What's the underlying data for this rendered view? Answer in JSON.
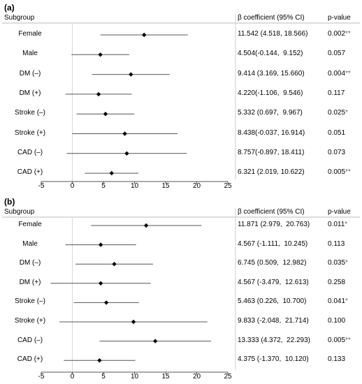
{
  "chart_data": [
    {
      "type": "forest",
      "panel_label": "(a)",
      "headers": {
        "subgroup": "Subgroup",
        "beta": "β coefficient (95% CI)",
        "pvalue": "p-value"
      },
      "x_ticks": [
        "-5",
        "0",
        "5",
        "10",
        "15",
        "20",
        "25"
      ],
      "xlim": [
        -5,
        25
      ],
      "rows": [
        {
          "label": "Female",
          "beta": 11.542,
          "lo": 4.518,
          "hi": 18.566,
          "ci_text": "11.542 (4.518, 18.566)",
          "p": "0.002",
          "sig": "**"
        },
        {
          "label": "Male",
          "beta": 4.504,
          "lo": -0.144,
          "hi": 9.152,
          "ci_text": "4.504(-0.144,  9.152)",
          "p": "0.057",
          "sig": ""
        },
        {
          "label": "DM (–)",
          "beta": 9.414,
          "lo": 3.169,
          "hi": 15.66,
          "ci_text": "9.414 (3.169, 15.660)",
          "p": "0.004",
          "sig": "**"
        },
        {
          "label": "DM (+)",
          "beta": 4.22,
          "lo": -1.106,
          "hi": 9.546,
          "ci_text": "4.220(-1.106,  9.546)",
          "p": "0.117",
          "sig": ""
        },
        {
          "label": "Stroke (–)",
          "beta": 5.332,
          "lo": 0.697,
          "hi": 9.967,
          "ci_text": "5.332 (0.697,  9.967)",
          "p": "0.025",
          "sig": "*"
        },
        {
          "label": "Stroke (+)",
          "beta": 8.438,
          "lo": -0.037,
          "hi": 16.914,
          "ci_text": "8.438(-0.037, 16.914)",
          "p": "0.051",
          "sig": ""
        },
        {
          "label": "CAD (–)",
          "beta": 8.757,
          "lo": -0.897,
          "hi": 18.411,
          "ci_text": "8.757(-0.897, 18.411)",
          "p": "0.073",
          "sig": ""
        },
        {
          "label": "CAD (+)",
          "beta": 6.321,
          "lo": 2.019,
          "hi": 10.622,
          "ci_text": "6.321 (2.019, 10.622)",
          "p": "0.005",
          "sig": "**"
        }
      ]
    },
    {
      "type": "forest",
      "panel_label": "(b)",
      "headers": {
        "subgroup": "Subgroup",
        "beta": "β coefficient (95% CI)",
        "pvalue": "p-value"
      },
      "x_ticks": [
        "-5",
        "0",
        "5",
        "10",
        "15",
        "20",
        "25"
      ],
      "xlim": [
        -5,
        25
      ],
      "rows": [
        {
          "label": "Female",
          "beta": 11.871,
          "lo": 2.979,
          "hi": 20.763,
          "ci_text": "11.871 (2.979,  20.763)",
          "p": "0.011",
          "sig": "*"
        },
        {
          "label": "Male",
          "beta": 4.567,
          "lo": -1.111,
          "hi": 10.245,
          "ci_text": "4.567 (-1.111,  10.245)",
          "p": "0.113",
          "sig": ""
        },
        {
          "label": "DM (–)",
          "beta": 6.745,
          "lo": 0.509,
          "hi": 12.982,
          "ci_text": "6.745 (0.509,  12.982)",
          "p": "0.035",
          "sig": "*"
        },
        {
          "label": "DM (+)",
          "beta": 4.567,
          "lo": -3.479,
          "hi": 12.613,
          "ci_text": "4.567 (-3.479,  12.613)",
          "p": "0.258",
          "sig": ""
        },
        {
          "label": "Stroke (–)",
          "beta": 5.463,
          "lo": 0.226,
          "hi": 10.7,
          "ci_text": "5.463 (0.226,  10.700)",
          "p": "0.041",
          "sig": "*"
        },
        {
          "label": "Stroke (+)",
          "beta": 9.833,
          "lo": -2.048,
          "hi": 21.714,
          "ci_text": "9.833 (-2.048,  21.714)",
          "p": "0.100",
          "sig": ""
        },
        {
          "label": "CAD (–)",
          "beta": 13.333,
          "lo": 4.372,
          "hi": 22.293,
          "ci_text": "13.333 (4.372,  22.293)",
          "p": "0.005",
          "sig": "**"
        },
        {
          "label": "CAD (+)",
          "beta": 4.375,
          "lo": -1.37,
          "hi": 10.12,
          "ci_text": "4.375 (-1.370,  10.120)",
          "p": "0.133",
          "sig": ""
        }
      ]
    }
  ]
}
